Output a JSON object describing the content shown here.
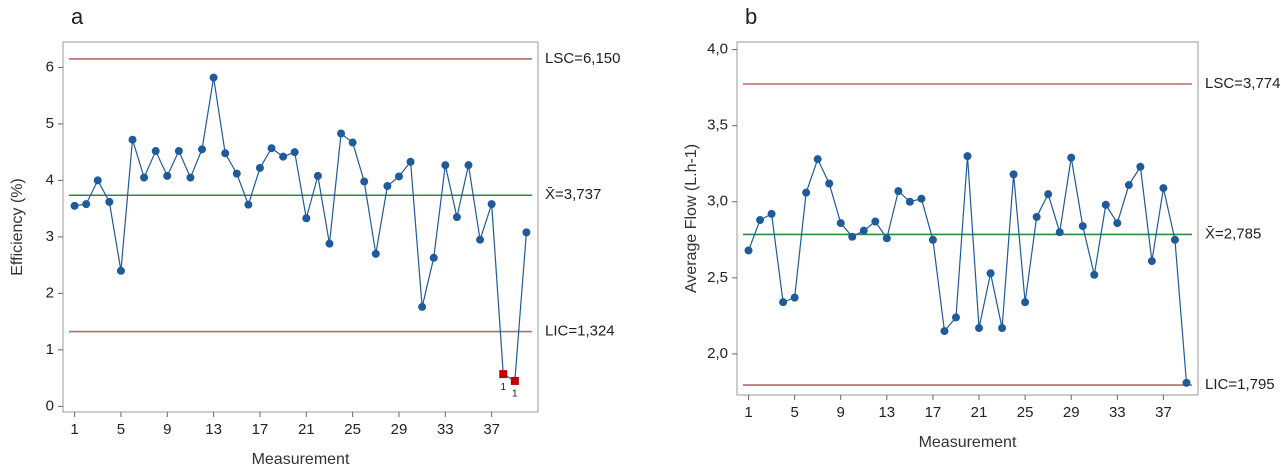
{
  "chart_data": [
    {
      "type": "line",
      "panel": "a",
      "xlabel": "Measurement",
      "ylabel": "Efficiency (%)",
      "xlim": [
        0,
        41
      ],
      "xticks": [
        1,
        5,
        9,
        13,
        17,
        21,
        25,
        29,
        33,
        37
      ],
      "ylim": [
        -0.1,
        6.45
      ],
      "yticks": [
        0,
        1,
        2,
        3,
        4,
        5,
        6
      ],
      "x": [
        1,
        2,
        3,
        4,
        5,
        6,
        7,
        8,
        9,
        10,
        11,
        12,
        13,
        14,
        15,
        16,
        17,
        18,
        19,
        20,
        21,
        22,
        23,
        24,
        25,
        26,
        27,
        28,
        29,
        30,
        31,
        32,
        33,
        34,
        35,
        36,
        37,
        38,
        39,
        40
      ],
      "values": [
        3.55,
        3.58,
        4.0,
        3.62,
        2.4,
        4.72,
        4.05,
        4.52,
        4.08,
        4.52,
        4.05,
        4.55,
        5.82,
        4.48,
        4.12,
        3.57,
        4.22,
        4.57,
        4.42,
        4.5,
        3.33,
        4.08,
        2.88,
        4.83,
        4.67,
        3.98,
        2.7,
        3.9,
        4.07,
        4.33,
        1.76,
        2.63,
        4.27,
        3.35,
        4.27,
        2.95,
        3.58,
        0.57,
        0.45,
        3.08
      ],
      "color": "#1f5a9a",
      "flag_color": "#c00000",
      "flags": [
        {
          "x": 38,
          "label": "1"
        },
        {
          "x": 39,
          "label": "1"
        }
      ],
      "limits": [
        {
          "label": "LSC=6,150",
          "value": 6.15,
          "color": "#b86a6a"
        },
        {
          "label": "X̄=3,737",
          "value": 3.737,
          "color": "#2e8b3e"
        },
        {
          "label": "LIC=1,324",
          "value": 1.324,
          "color": "#b86a6a"
        }
      ]
    },
    {
      "type": "line",
      "panel": "b",
      "xlabel": "Measurement",
      "ylabel": "Average Flow (L.h-1)",
      "xlim": [
        0,
        40
      ],
      "xticks": [
        1,
        5,
        9,
        13,
        17,
        21,
        25,
        29,
        33,
        37
      ],
      "ylim": [
        1.73,
        4.05
      ],
      "yticks": [
        {
          "value": 2,
          "label": "2,0"
        },
        {
          "value": 2.5,
          "label": "2,5"
        },
        {
          "value": 3,
          "label": "3,0"
        },
        {
          "value": 3.5,
          "label": "3,5"
        },
        {
          "value": 4,
          "label": "4,0"
        }
      ],
      "x": [
        1,
        2,
        3,
        4,
        5,
        6,
        7,
        8,
        9,
        10,
        11,
        12,
        13,
        14,
        15,
        16,
        17,
        18,
        19,
        20,
        21,
        22,
        23,
        24,
        25,
        26,
        27,
        28,
        29,
        30,
        31,
        32,
        33,
        34,
        35,
        36,
        37,
        38,
        39
      ],
      "values": [
        2.68,
        2.88,
        2.92,
        2.34,
        2.37,
        3.06,
        3.28,
        3.12,
        2.86,
        2.77,
        2.81,
        2.87,
        2.76,
        3.07,
        3.0,
        3.02,
        2.75,
        2.15,
        2.24,
        3.3,
        2.17,
        2.53,
        2.17,
        3.18,
        2.34,
        2.9,
        3.05,
        2.8,
        3.29,
        2.84,
        2.52,
        2.98,
        2.86,
        3.11,
        3.23,
        2.61,
        3.09,
        2.75,
        1.81
      ],
      "color": "#1f5a9a",
      "flag_color": "#c00000",
      "flags": [],
      "limits": [
        {
          "label": "LSC=3,774",
          "value": 3.774,
          "color": "#b86a6a"
        },
        {
          "label": "X̄=2,785",
          "value": 2.785,
          "color": "#2e8b3e"
        },
        {
          "label": "LIC=1,795",
          "value": 1.795,
          "color": "#b86a6a"
        }
      ]
    }
  ]
}
